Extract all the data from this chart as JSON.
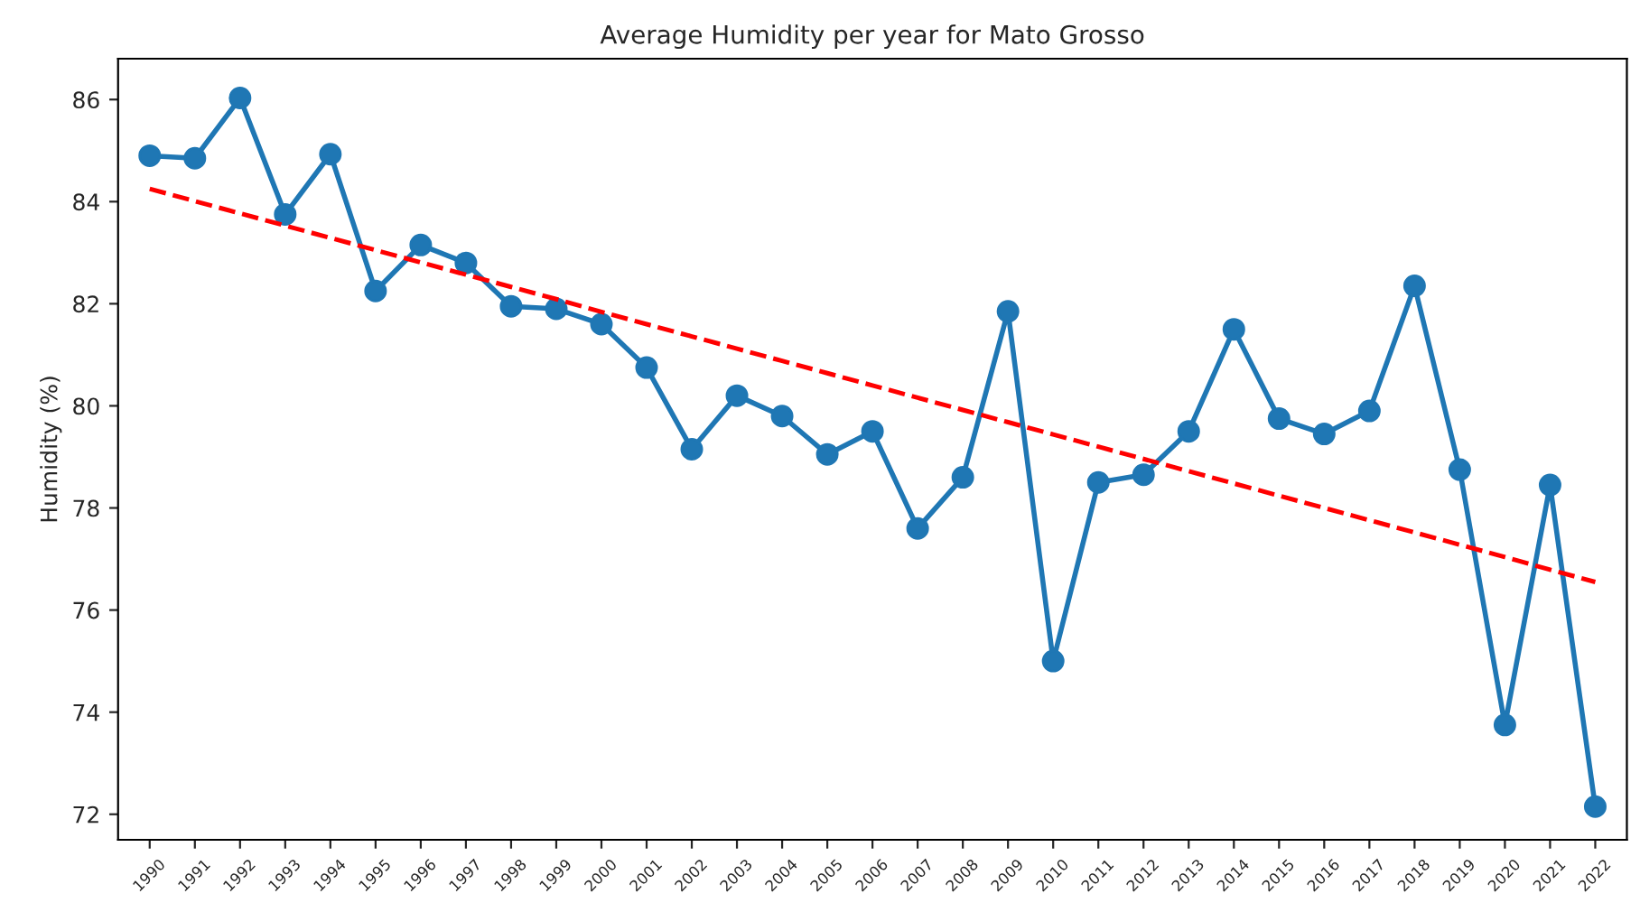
{
  "chart_data": {
    "type": "line",
    "title": "Average Humidity per year for Mato Grosso",
    "ylabel": "Humidity (%)",
    "categories": [
      "1990",
      "1991",
      "1992",
      "1993",
      "1994",
      "1995",
      "1996",
      "1997",
      "1998",
      "1999",
      "2000",
      "2001",
      "2002",
      "2003",
      "2004",
      "2005",
      "2006",
      "2007",
      "2008",
      "2009",
      "2010",
      "2011",
      "2012",
      "2013",
      "2014",
      "2015",
      "2016",
      "2017",
      "2018",
      "2019",
      "2020",
      "2021",
      "2022"
    ],
    "series": [
      {
        "color": "#1f77b4",
        "marker": "circle",
        "line_style": "solid",
        "values": [
          84.9,
          84.85,
          86.03,
          83.75,
          84.93,
          82.25,
          83.15,
          82.8,
          81.95,
          81.9,
          81.6,
          80.75,
          79.15,
          80.2,
          79.8,
          79.05,
          79.5,
          77.6,
          78.6,
          81.85,
          75.0,
          78.5,
          78.65,
          79.5,
          81.5,
          79.75,
          79.45,
          79.9,
          82.35,
          78.75,
          73.75,
          78.45,
          72.15
        ]
      },
      {
        "color": "#ff0000",
        "marker": "none",
        "line_style": "dashed",
        "values": [
          84.25,
          84.01,
          83.77,
          83.53,
          83.29,
          83.05,
          82.81,
          82.57,
          82.33,
          82.09,
          81.84,
          81.6,
          81.36,
          81.12,
          80.88,
          80.64,
          80.4,
          80.16,
          79.92,
          79.68,
          79.44,
          79.2,
          78.96,
          78.72,
          78.48,
          78.24,
          78.0,
          77.76,
          77.52,
          77.28,
          77.04,
          76.79,
          76.55
        ]
      }
    ],
    "ylim": [
      71.5,
      86.8
    ],
    "yticks": [
      72,
      74,
      76,
      78,
      80,
      82,
      84,
      86
    ],
    "grid": false,
    "legend": false
  }
}
